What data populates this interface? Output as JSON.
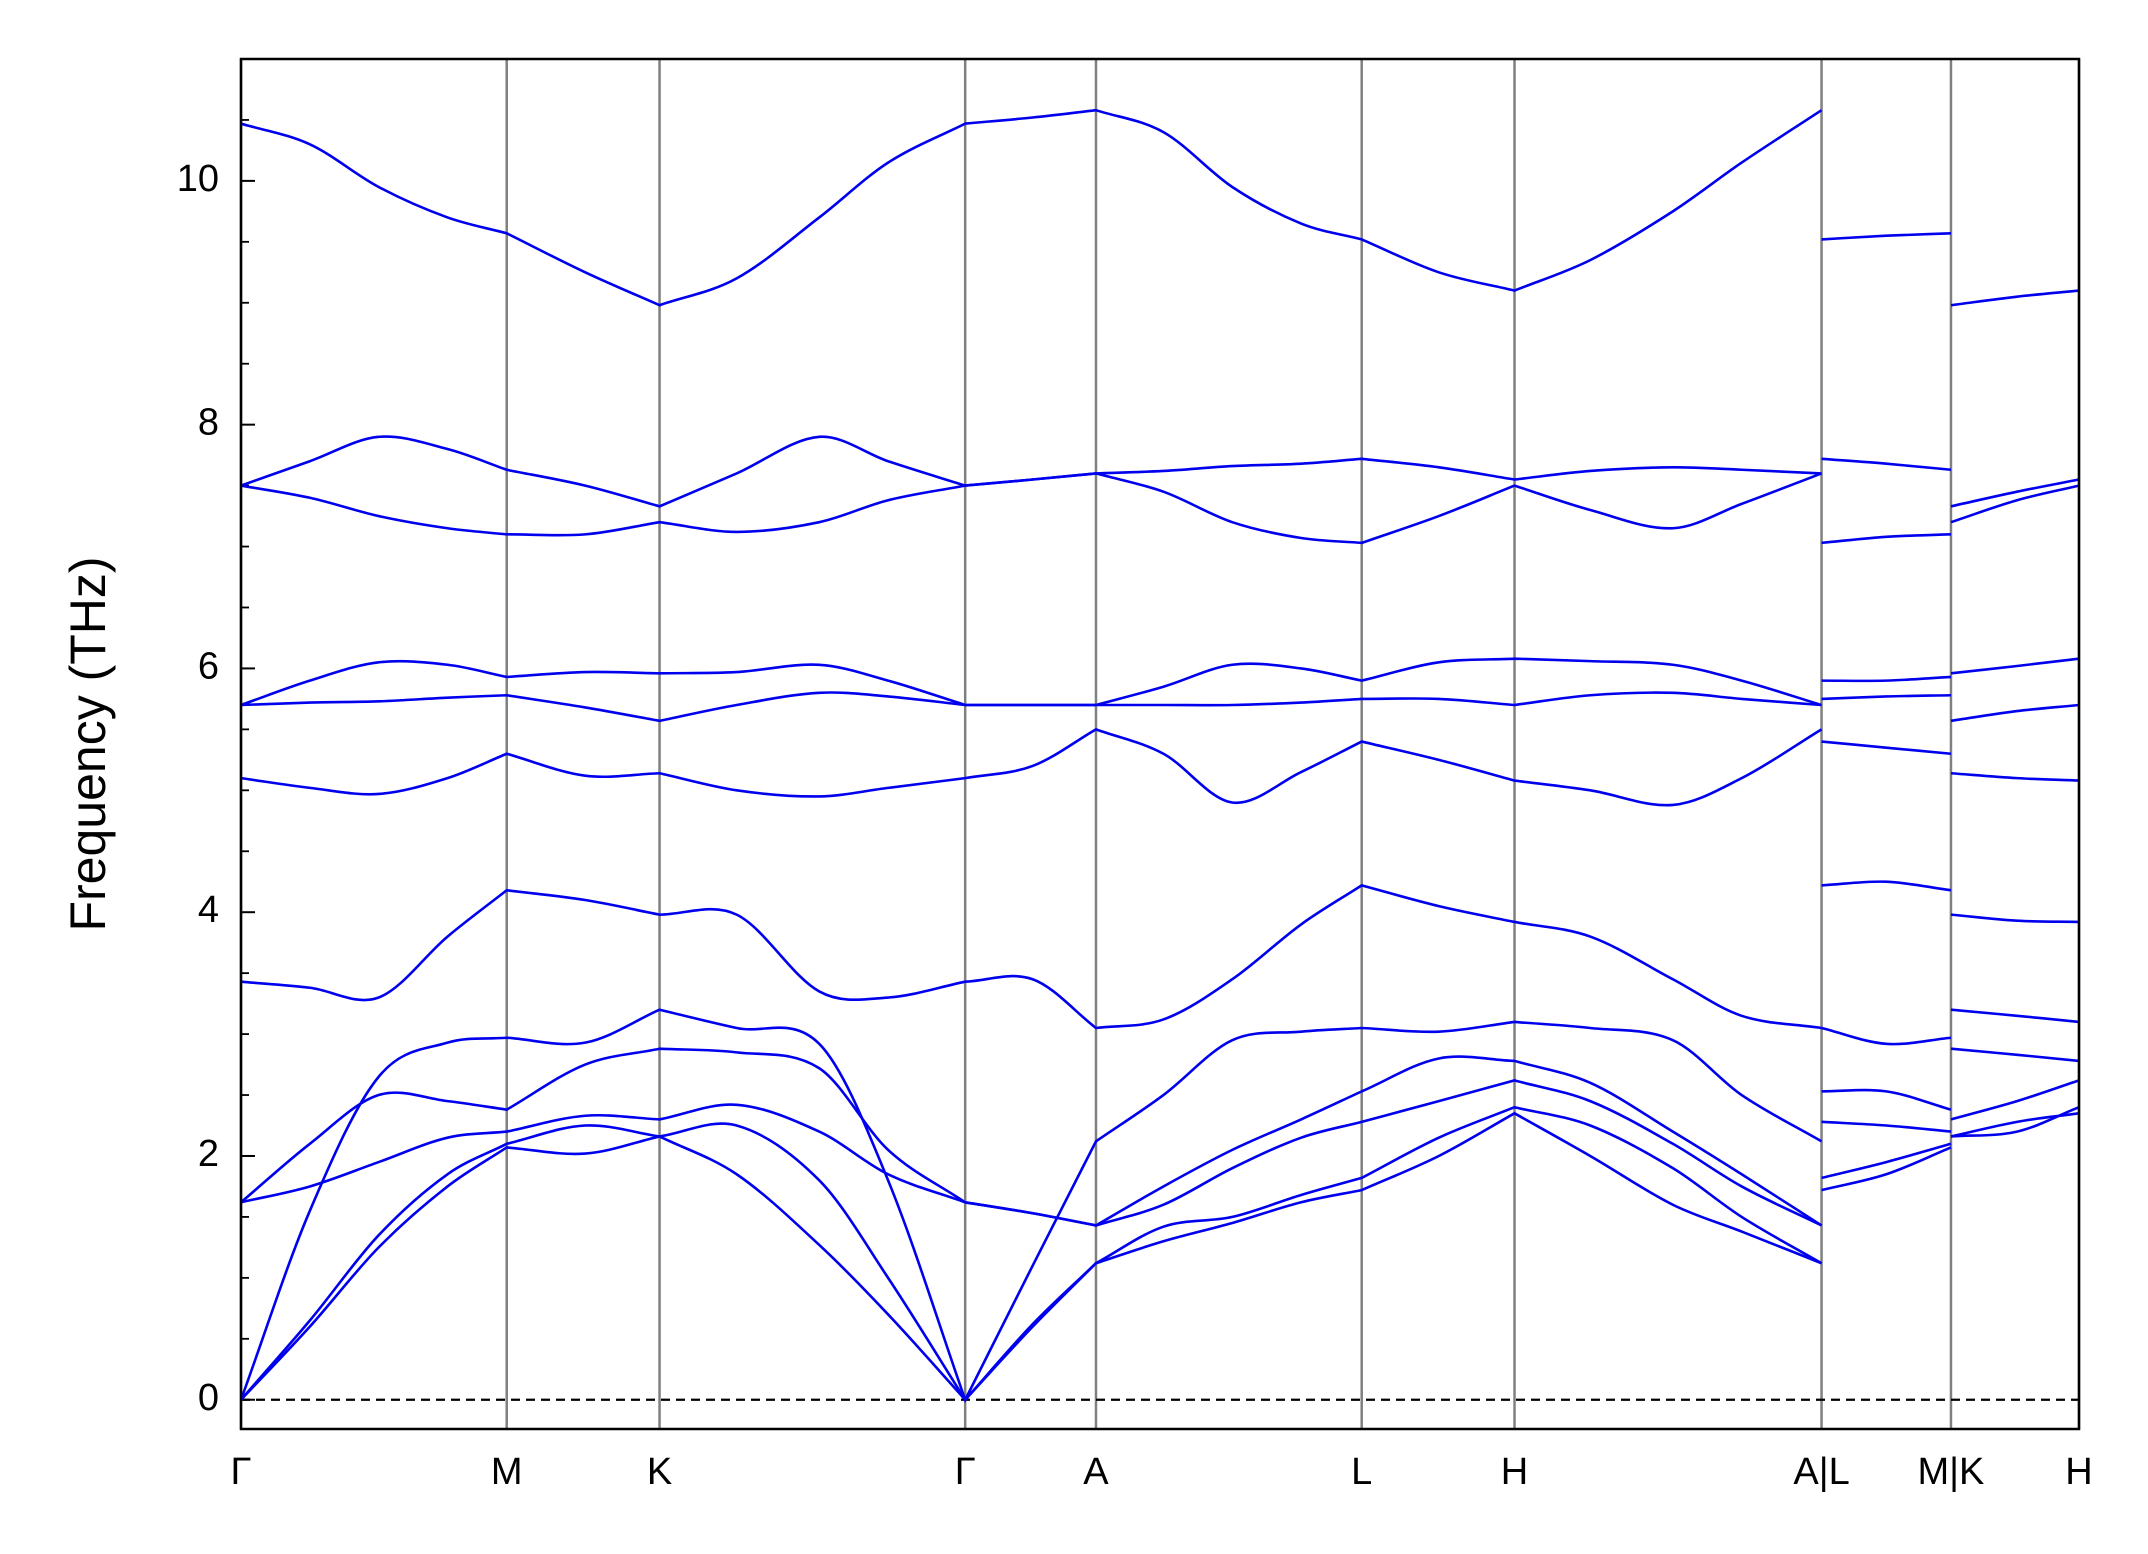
{
  "chart_data": {
    "type": "line",
    "y_label": "Frequency (THz)",
    "color": "#0000ee",
    "xlim": [
      0,
      13.35
    ],
    "xticks": [
      {
        "value": 0,
        "label": "Γ"
      },
      {
        "value": 1.93,
        "label": "M"
      },
      {
        "value": 3.04,
        "label": "K"
      },
      {
        "value": 5.26,
        "label": "Γ"
      },
      {
        "value": 6.21,
        "label": "A"
      },
      {
        "value": 8.14,
        "label": "L"
      },
      {
        "value": 9.25,
        "label": "H"
      },
      {
        "value": 11.48,
        "label": "A|L"
      },
      {
        "value": 12.42,
        "label": "M|K"
      },
      {
        "value": 13.35,
        "label": "H"
      }
    ],
    "ylim": [
      -0.24,
      11.0
    ],
    "yticks": [
      0,
      2,
      4,
      6,
      8,
      10
    ],
    "yminorticks": [
      0.5,
      1,
      1.5,
      2.5,
      3,
      3.5,
      4.5,
      5,
      5.5,
      6.5,
      7,
      7.5,
      8.5,
      9,
      9.5,
      10.5
    ],
    "hline": 0,
    "x": [
      0,
      0.5,
      1.0,
      1.5,
      1.93,
      2.5,
      3.04,
      3.6,
      4.2,
      4.7,
      5.26,
      5.75,
      6.21,
      6.7,
      7.2,
      7.7,
      8.14,
      8.7,
      9.25,
      9.8,
      10.4,
      10.9,
      11.48,
      11.48,
      11.48,
      11.95,
      12.42,
      12.42,
      12.42,
      12.9,
      13.35
    ],
    "series": [
      {
        "values": [
          0,
          0.6,
          1.25,
          1.75,
          2.07,
          2.02,
          2.16,
          1.85,
          1.27,
          0.7,
          0,
          0.6,
          1.12,
          1.3,
          1.45,
          1.62,
          1.72,
          2.0,
          2.35,
          2.0,
          1.6,
          1.38,
          1.12,
          null,
          1.72,
          1.85,
          2.07,
          null,
          2.16,
          2.28,
          2.35
        ]
      },
      {
        "values": [
          0,
          0.65,
          1.35,
          1.85,
          2.1,
          2.25,
          2.16,
          2.25,
          1.8,
          1.0,
          0,
          0.62,
          1.12,
          1.42,
          1.5,
          1.68,
          1.82,
          2.15,
          2.4,
          2.25,
          1.9,
          1.5,
          1.12,
          null,
          1.82,
          1.95,
          2.1,
          null,
          2.16,
          2.2,
          2.4
        ]
      },
      {
        "values": [
          0,
          1.55,
          2.65,
          2.93,
          2.97,
          2.93,
          3.2,
          3.05,
          2.92,
          1.8,
          0,
          1.1,
          2.12,
          2.5,
          2.95,
          3.02,
          3.05,
          3.02,
          3.1,
          3.05,
          2.95,
          2.5,
          2.12,
          null,
          3.05,
          2.92,
          2.97,
          null,
          3.2,
          3.15,
          3.1
        ]
      },
      {
        "values": [
          1.62,
          1.75,
          1.95,
          2.15,
          2.2,
          2.33,
          2.3,
          2.42,
          2.2,
          1.85,
          1.62,
          1.53,
          1.43,
          1.75,
          2.05,
          2.3,
          2.53,
          2.8,
          2.78,
          2.6,
          2.2,
          1.85,
          1.43,
          null,
          2.53,
          2.53,
          2.38,
          null,
          2.3,
          2.45,
          2.62
        ]
      },
      {
        "values": [
          1.62,
          2.1,
          2.5,
          2.45,
          2.38,
          2.75,
          2.88,
          2.85,
          2.72,
          2.05,
          1.62,
          1.53,
          1.43,
          1.6,
          1.9,
          2.15,
          2.28,
          2.45,
          2.62,
          2.45,
          2.1,
          1.75,
          1.43,
          null,
          2.28,
          2.25,
          2.2,
          null,
          2.88,
          2.83,
          2.78
        ]
      },
      {
        "values": [
          3.43,
          3.38,
          3.3,
          3.8,
          4.18,
          4.1,
          3.98,
          3.98,
          3.35,
          3.3,
          3.43,
          3.45,
          3.05,
          3.12,
          3.45,
          3.9,
          4.22,
          4.05,
          3.92,
          3.8,
          3.45,
          3.15,
          3.05,
          null,
          4.22,
          4.25,
          4.18,
          null,
          3.98,
          3.93,
          3.92
        ]
      },
      {
        "values": [
          5.1,
          5.02,
          4.97,
          5.1,
          5.3,
          5.12,
          5.14,
          5.0,
          4.95,
          5.02,
          5.1,
          5.2,
          5.5,
          5.3,
          4.9,
          5.15,
          5.4,
          5.25,
          5.08,
          5.0,
          4.88,
          5.1,
          5.5,
          null,
          5.4,
          5.35,
          5.3,
          null,
          5.14,
          5.1,
          5.08
        ]
      },
      {
        "values": [
          5.7,
          5.72,
          5.73,
          5.76,
          5.78,
          5.68,
          5.57,
          5.7,
          5.8,
          5.77,
          5.7,
          5.7,
          5.7,
          5.7,
          5.7,
          5.72,
          5.75,
          5.75,
          5.7,
          5.78,
          5.8,
          5.75,
          5.7,
          null,
          5.75,
          5.77,
          5.78,
          null,
          5.57,
          5.65,
          5.7
        ]
      },
      {
        "values": [
          5.7,
          5.9,
          6.05,
          6.03,
          5.93,
          5.97,
          5.96,
          5.97,
          6.03,
          5.9,
          5.7,
          5.7,
          5.7,
          5.85,
          6.03,
          6.0,
          5.9,
          6.05,
          6.08,
          6.06,
          6.03,
          5.9,
          5.7,
          null,
          5.9,
          5.9,
          5.93,
          null,
          5.96,
          6.02,
          6.08
        ]
      },
      {
        "values": [
          7.5,
          7.4,
          7.25,
          7.15,
          7.1,
          7.1,
          7.2,
          7.12,
          7.2,
          7.38,
          7.5,
          7.55,
          7.6,
          7.45,
          7.2,
          7.07,
          7.03,
          7.25,
          7.5,
          7.3,
          7.15,
          7.35,
          7.6,
          null,
          7.03,
          7.08,
          7.1,
          null,
          7.2,
          7.38,
          7.5
        ]
      },
      {
        "values": [
          7.5,
          7.7,
          7.9,
          7.8,
          7.63,
          7.5,
          7.33,
          7.6,
          7.9,
          7.7,
          7.5,
          7.55,
          7.6,
          7.62,
          7.66,
          7.68,
          7.72,
          7.65,
          7.55,
          7.62,
          7.65,
          7.63,
          7.6,
          null,
          7.72,
          7.68,
          7.63,
          null,
          7.33,
          7.45,
          7.55
        ]
      },
      {
        "values": [
          10.47,
          10.3,
          9.95,
          9.7,
          9.57,
          9.25,
          8.98,
          9.2,
          9.7,
          10.15,
          10.47,
          10.52,
          10.58,
          10.4,
          9.95,
          9.65,
          9.52,
          9.25,
          9.1,
          9.35,
          9.75,
          10.15,
          10.58,
          null,
          9.52,
          9.55,
          9.57,
          null,
          8.98,
          9.05,
          9.1
        ]
      }
    ]
  }
}
